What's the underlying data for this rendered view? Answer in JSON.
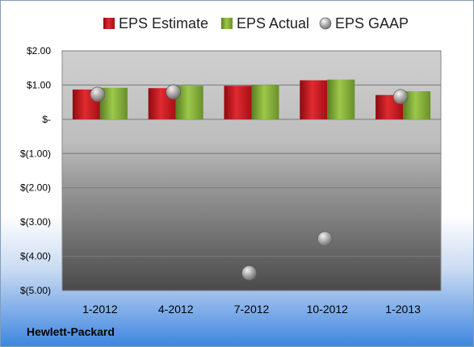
{
  "footer": {
    "company": "Hewlett-Packard"
  },
  "colors": {
    "estimate": "#c0141c",
    "actual": "#78a234",
    "gaap": "#9a9a9a"
  },
  "chart_data": {
    "type": "bar",
    "categories": [
      "1-2012",
      "4-2012",
      "7-2012",
      "10-2012",
      "1-2013"
    ],
    "series": [
      {
        "name": "EPS Estimate",
        "type": "bar",
        "values": [
          0.87,
          0.91,
          0.98,
          1.14,
          0.71
        ]
      },
      {
        "name": "EPS Actual",
        "type": "bar",
        "values": [
          0.92,
          0.98,
          1.0,
          1.16,
          0.82
        ]
      },
      {
        "name": "EPS GAAP",
        "type": "scatter",
        "values": [
          0.73,
          0.8,
          -4.49,
          -3.49,
          0.66
        ]
      }
    ],
    "ylim": [
      -5,
      2
    ],
    "yticks": [
      2,
      1,
      0,
      -1,
      -2,
      -3,
      -4,
      -5
    ],
    "ytick_labels": [
      "$2.00",
      "$1.00",
      "$-",
      "$(1.00)",
      "$(2.00)",
      "$(3.00)",
      "$(4.00)",
      "$(5.00)"
    ],
    "legend_position": "top",
    "grid": true
  }
}
